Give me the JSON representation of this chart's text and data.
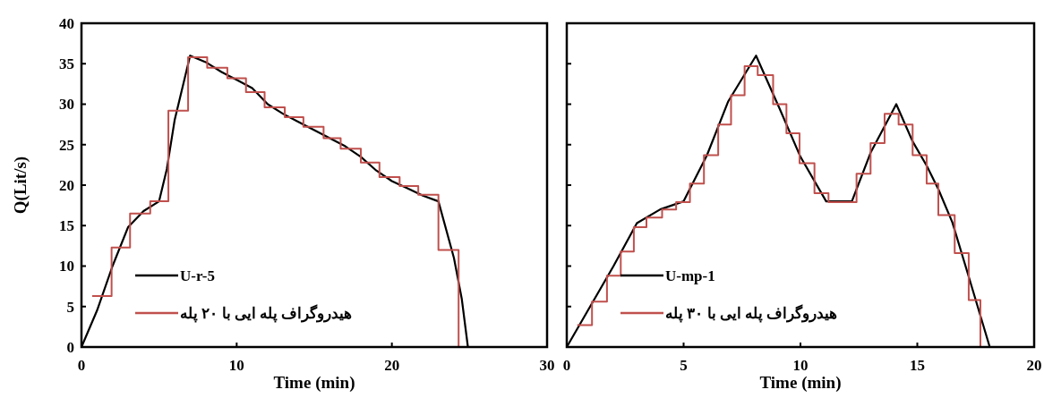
{
  "chart_data": [
    {
      "type": "line",
      "xlabel": "Time (min)",
      "ylabel": "Q(Lit/s)",
      "xlim": [
        0,
        30
      ],
      "xticks": [
        0,
        10,
        20,
        30
      ],
      "ylim": [
        0,
        40
      ],
      "yticks": [
        0,
        5,
        10,
        15,
        20,
        25,
        30,
        35,
        40
      ],
      "grid": false,
      "legend": "bottom left",
      "marker": "none",
      "line_style": "solid",
      "series": [
        {
          "name": "U-r-5",
          "type": "line",
          "color": "#000000",
          "x": [
            0,
            1,
            2,
            3,
            4,
            5,
            5.5,
            6,
            7,
            8,
            9,
            10,
            11,
            12,
            13,
            14,
            15,
            16,
            17,
            18,
            19,
            20,
            21,
            22,
            23,
            24,
            24.5,
            24.9
          ],
          "values": [
            0,
            4.5,
            10,
            14.8,
            16.8,
            18,
            22,
            28,
            36,
            35.2,
            34,
            33,
            32,
            30,
            28.8,
            27.8,
            26.8,
            25.8,
            24.8,
            23.5,
            21.8,
            20.5,
            19.6,
            18.7,
            18,
            11,
            6,
            0
          ]
        },
        {
          "name": "هیدروگراف پله ایی با ۲۰ پله",
          "type": "step",
          "color": "#c0504d",
          "x": [
            0.69,
            1.94,
            3.13,
            4.43,
            5.6,
            6.87,
            8.1,
            9.4,
            10.6,
            11.8,
            13.1,
            14.3,
            15.6,
            16.7,
            18,
            19.2,
            20.5,
            21.7,
            23,
            24.3
          ],
          "values": [
            6.3,
            12.3,
            16.5,
            18,
            29.2,
            35.8,
            34.5,
            33.2,
            31.5,
            29.6,
            28.4,
            27.2,
            25.8,
            24.5,
            22.8,
            21,
            19.9,
            18.8,
            12,
            0
          ]
        }
      ]
    },
    {
      "type": "line",
      "xlabel": "Time (min)",
      "xlim": [
        0,
        20
      ],
      "xticks": [
        0,
        5,
        10,
        15,
        20
      ],
      "ylim": [
        0,
        40
      ],
      "yticks": [
        0,
        5,
        10,
        15,
        20,
        25,
        30,
        35,
        40
      ],
      "tick_labels": "x",
      "grid": false,
      "legend": "bottom left",
      "marker": "none",
      "line_style": "solid",
      "series": [
        {
          "name": "U-mp-1",
          "type": "line",
          "color": "#000000",
          "x": [
            0,
            1,
            2,
            3,
            4,
            5,
            6,
            6.9,
            8.1,
            9.1,
            10,
            11.1,
            12.2,
            13,
            14.1,
            14.8,
            15.4,
            15.9,
            16.5,
            17.2,
            18.1
          ],
          "values": [
            0,
            5,
            10,
            15.3,
            17,
            18,
            23.7,
            30.3,
            36,
            29.5,
            23.5,
            18,
            18,
            24,
            30,
            25.4,
            22.4,
            19.5,
            15.4,
            8.7,
            0
          ]
        },
        {
          "name": "هیدروگراف پله ایی با ۳۰ پله",
          "type": "step",
          "color": "#c0504d",
          "x": [
            0.45,
            1.08,
            1.72,
            2.31,
            2.87,
            3.41,
            4.08,
            4.68,
            5.27,
            5.87,
            6.48,
            7.03,
            7.61,
            8.17,
            8.83,
            9.4,
            9.96,
            10.6,
            11.2,
            12.4,
            13,
            13.6,
            14.2,
            14.8,
            15.4,
            15.9,
            16.6,
            17.2,
            17.7
          ],
          "values": [
            2.7,
            5.6,
            8.8,
            11.8,
            14.8,
            16,
            17,
            17.9,
            20.2,
            23.7,
            27.5,
            31.1,
            34.7,
            33.6,
            30,
            26.4,
            22.7,
            19,
            17.9,
            21.4,
            25.2,
            28.8,
            27.5,
            23.7,
            20.2,
            16.3,
            11.6,
            5.8,
            0
          ]
        }
      ]
    }
  ]
}
